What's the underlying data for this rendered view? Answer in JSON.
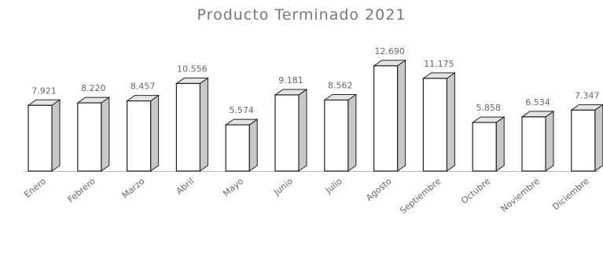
{
  "chart_data": {
    "type": "bar",
    "title": "Producto Terminado 2021",
    "xlabel": "",
    "ylabel": "",
    "categories": [
      "Enero",
      "Febrero",
      "Marzo",
      "Abril",
      "Mayo",
      "Junio",
      "Julio",
      "Agosto",
      "Septiembre",
      "Octubre",
      "Noviembre",
      "Diciembre"
    ],
    "values": [
      7921,
      8220,
      8457,
      10556,
      5574,
      9181,
      8562,
      12690,
      11175,
      5858,
      6534,
      7347
    ],
    "value_labels": [
      "7.921",
      "8.220",
      "8.457",
      "10.556",
      "5.574",
      "9.181",
      "8.562",
      "12.690",
      "11.175",
      "5.858",
      "6.534",
      "7.347"
    ],
    "ylim": [
      0,
      14000
    ],
    "grid": false,
    "legend": "none",
    "bar_color": "#ffffff",
    "edge_color": "#222222",
    "shade_color": "#c8c8c8"
  }
}
